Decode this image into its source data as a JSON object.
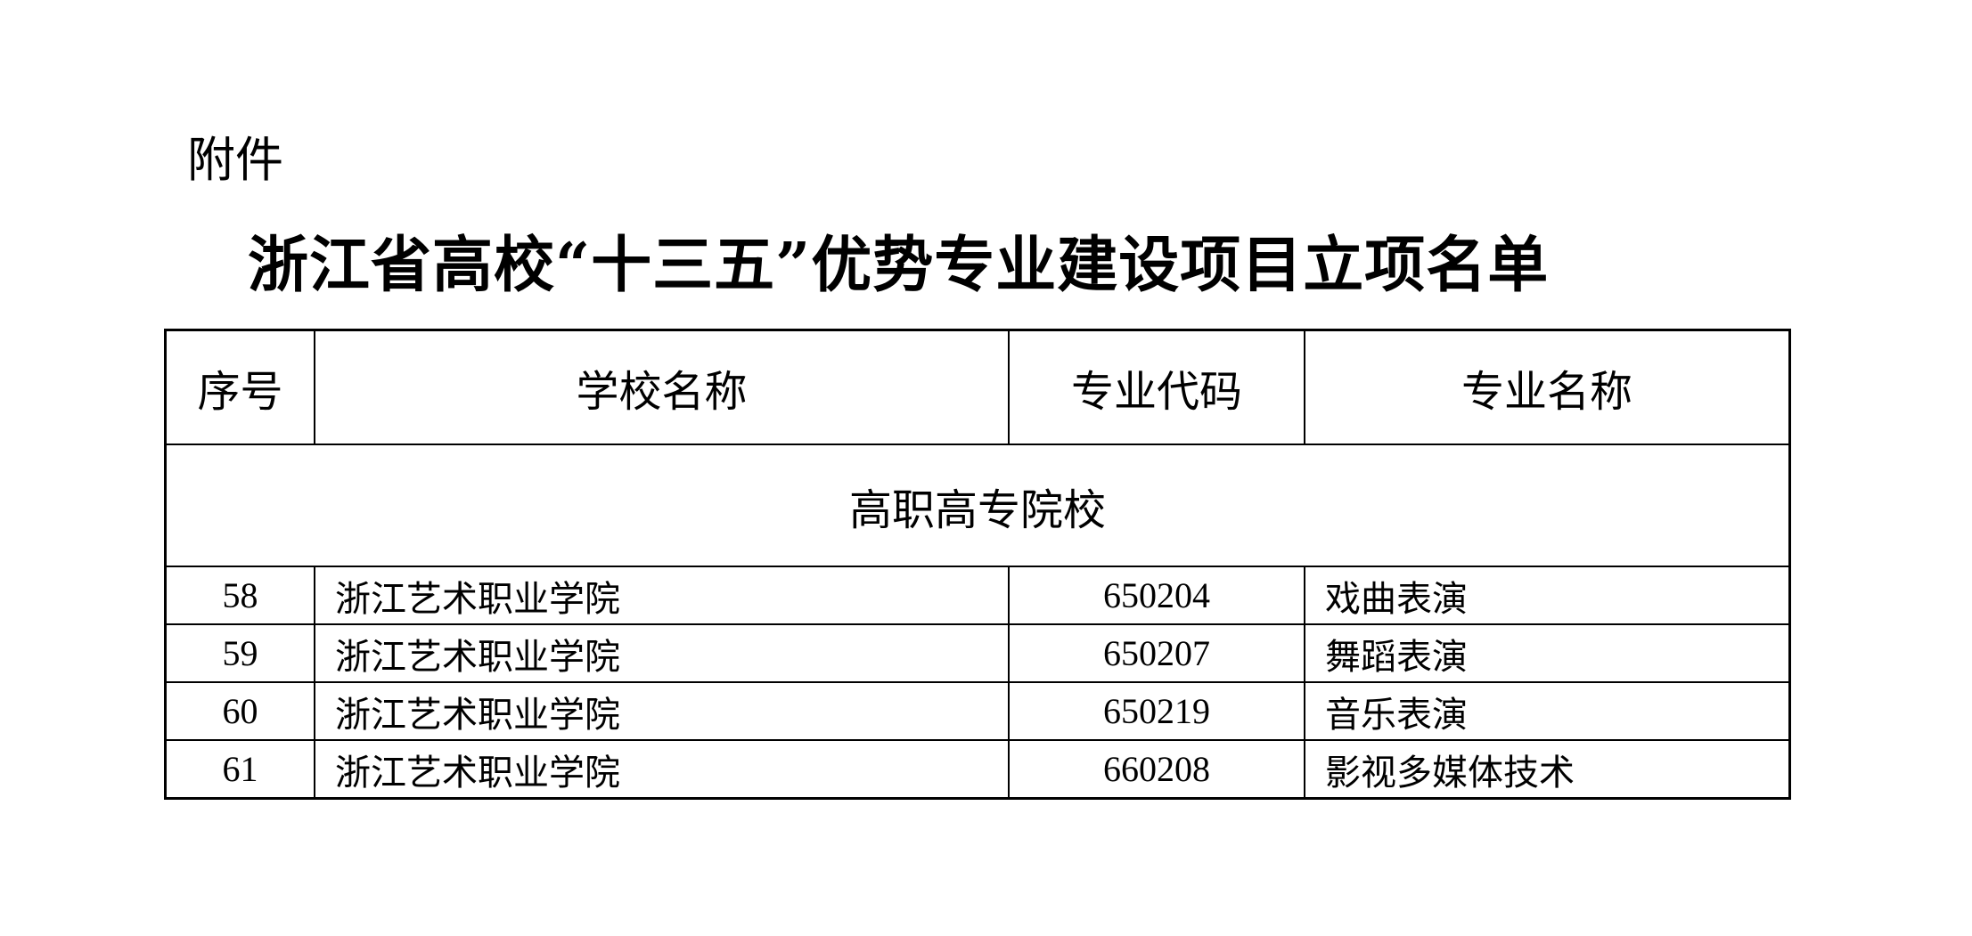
{
  "attachment_label": "附件",
  "title": "浙江省高校“十三五”优势专业建设项目立项名单",
  "table": {
    "headers": [
      "序号",
      "学校名称",
      "专业代码",
      "专业名称"
    ],
    "section": "高职高专院校",
    "rows": [
      [
        "58",
        "浙江艺术职业学院",
        "650204",
        "戏曲表演"
      ],
      [
        "59",
        "浙江艺术职业学院",
        "650207",
        "舞蹈表演"
      ],
      [
        "60",
        "浙江艺术职业学院",
        "650219",
        "音乐表演"
      ],
      [
        "61",
        "浙江艺术职业学院",
        "660208",
        "影视多媒体技术"
      ]
    ]
  }
}
